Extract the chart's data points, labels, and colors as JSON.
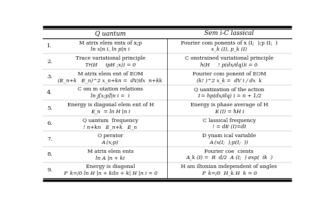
{
  "header_left": "Q uantum",
  "header_right": "Sem i-C lassical",
  "rows": [
    {
      "num": "1.",
      "q_top": "M atrix elem ents of x;p",
      "q_bot": "ln x|n i, ln p|n i",
      "sc_top": "Fourier com ponents of x (I;  );p (I;  )",
      "sc_bot": "x_k (I), p_k (I)"
    },
    {
      "num": "2.",
      "q_top": "Trace variational principle",
      "q_bot": "Tr(H     ipH ;x)) = 0",
      "sc_top": "C onstrained variational principle",
      "sc_bot": "h(H     ! p(dx/dq))i = 0"
    },
    {
      "num": "3.",
      "q_top": "M atrix elem ent of EOM",
      "q_bot": "(E_n+k   E_n)^2 x_n+kn =  dV/dx  n+kk",
      "sc_top": "Fourier com ponent of EOM",
      "sc_bot": "(k! )^2 x_k =  dV i / dx  k"
    },
    {
      "num": "4.",
      "q_top": "C om m utation relations",
      "q_bot": "ln j[x;p]|n i =  i",
      "sc_top": "Q uantization of the action",
      "sc_bot": "I = hp(dx/dq) i = n + 1/2"
    },
    {
      "num": "5.",
      "q_top": "Energy is diagonal elem ent of H",
      "q_bot": "E_n  = ln H |n i",
      "sc_top": "Energy is phase average of H",
      "sc_bot": "E (I) = hH i"
    },
    {
      "num": "6.",
      "q_top": "Q uantum  frequency",
      "q_bot": "! n+kn   E_n+k   E_n",
      "sc_top": "C lassical frequency",
      "sc_bot": "! = dE (I)=dI"
    },
    {
      "num": "7.",
      "q_top": "O perator",
      "q_bot": "A (x;p)",
      "sc_top": "D ynam ical variable",
      "sc_bot": "A (x(I;  );p(I;  ))"
    },
    {
      "num": "8.",
      "q_top": "M atrix elem ents",
      "q_bot": "ln A |n + ki",
      "sc_top": "Fourier coe  cients",
      "sc_bot": "A_k (I) =  R  d/2  A (I;  ) exp(  ik  )"
    },
    {
      "num": "9.",
      "q_top": "Energy is diagonal",
      "q_bot": "P  k=/0 ln H |n + kiln + k| H |n i = 0",
      "sc_top": "H am iltonian independent of angles",
      "sc_bot": "P  k=/0  H_k H  k = 0"
    }
  ]
}
